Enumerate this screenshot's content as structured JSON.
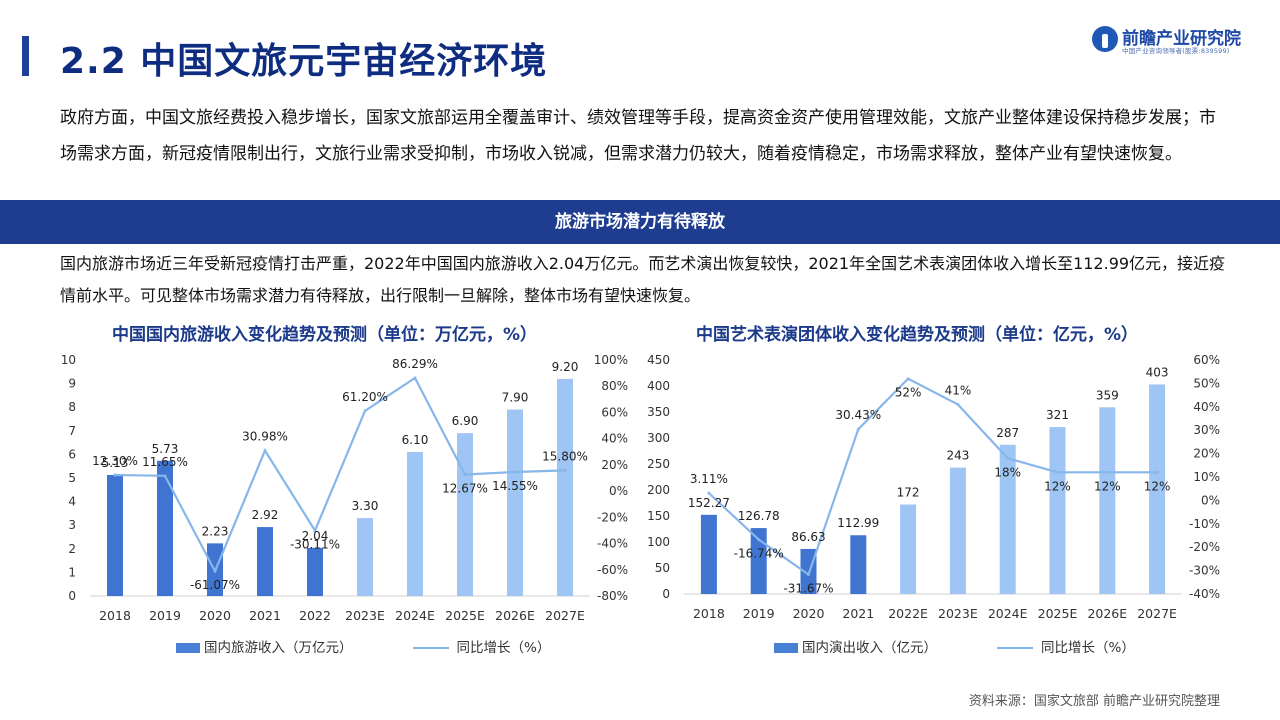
{
  "page": {
    "title": "2.2 中国文旅元宇宙经济环境",
    "logo_name": "前瞻产业研究院",
    "logo_sub": "中国产业咨询领导者(股票:839599)",
    "intro": "政府方面，中国文旅经费投入稳步增长，国家文旅部运用全覆盖审计、绩效管理等手段，提高资金资产使用管理效能，文旅产业整体建设保持稳步发展；市场需求方面，新冠疫情限制出行，文旅行业需求受抑制，市场收入锐减，但需求潜力仍较大，随着疫情稳定，市场需求释放，整体产业有望快速恢复。",
    "banner": "旅游市场潜力有待释放",
    "desc": "国内旅游市场近三年受新冠疫情打击严重，2022年中国国内旅游收入2.04万亿元。而艺术演出恢复较快，2021年全国艺术表演团体收入增长至112.99亿元，接近疫情前水平。可见整体市场需求潜力有待释放，出行限制一旦解除，整体市场有望快速恢复。",
    "source": "资料来源：国家文旅部 前瞻产业研究院整理",
    "colors": {
      "actual": "#3f74d1",
      "forecast": "#9ec5f3",
      "line": "#86b6ea",
      "title": "#1b3a8a"
    }
  },
  "chart_data": [
    {
      "type": "bar",
      "title": "中国国内旅游收入变化趋势及预测（单位：万亿元，%）",
      "categories": [
        "2018",
        "2019",
        "2020",
        "2021",
        "2022",
        "2023E",
        "2024E",
        "2025E",
        "2026E",
        "2027E"
      ],
      "forecast_from_index": 5,
      "series": [
        {
          "name": "国内旅游收入（万亿元）",
          "axis": "left",
          "values": [
            5.13,
            5.73,
            2.23,
            2.92,
            2.04,
            3.3,
            6.1,
            6.9,
            7.9,
            9.2
          ],
          "labels": [
            "5.13",
            "5.73",
            "2.23",
            "2.92",
            "2.04",
            "3.30",
            "6.10",
            "6.90",
            "7.90",
            "9.20"
          ]
        },
        {
          "name": "同比增长（%）",
          "type": "line",
          "axis": "right",
          "values": [
            12.3,
            11.65,
            -61.07,
            30.98,
            -30.11,
            61.2,
            86.29,
            12.67,
            14.55,
            15.8
          ],
          "labels": [
            "12.30%",
            "11.65%",
            "-61.07%",
            "30.98%",
            "-30.11%",
            "61.20%",
            "86.29%",
            "12.67%",
            "14.55%",
            "15.80%"
          ]
        }
      ],
      "y_left": {
        "min": 0,
        "max": 10,
        "ticks": [
          "0",
          "1",
          "2",
          "3",
          "4",
          "5",
          "6",
          "7",
          "8",
          "9",
          "10"
        ]
      },
      "y_right": {
        "min": -80,
        "max": 100,
        "ticks": [
          "-80%",
          "-60%",
          "-40%",
          "-20%",
          "0%",
          "20%",
          "40%",
          "60%",
          "80%",
          "100%"
        ]
      },
      "legend_bar": "国内旅游收入（万亿元）",
      "legend_line": "同比增长（%）"
    },
    {
      "type": "bar",
      "title": "中国艺术表演团体收入变化趋势及预测（单位：亿元，%）",
      "categories": [
        "2018",
        "2019",
        "2020",
        "2021",
        "2022E",
        "2023E",
        "2024E",
        "2025E",
        "2026E",
        "2027E"
      ],
      "forecast_from_index": 4,
      "series": [
        {
          "name": "国内演出收入（亿元）",
          "axis": "left",
          "values": [
            152.27,
            126.78,
            86.63,
            112.99,
            172,
            243,
            287,
            321,
            359,
            403
          ],
          "labels": [
            "152.27",
            "126.78",
            "86.63",
            "112.99",
            "172",
            "243",
            "287",
            "321",
            "359",
            "403"
          ]
        },
        {
          "name": "同比增长（%）",
          "type": "line",
          "axis": "right",
          "values": [
            3.11,
            -16.74,
            -31.67,
            30.43,
            52,
            41,
            18,
            12,
            12,
            12
          ],
          "labels": [
            "3.11%",
            "-16.74%",
            "-31.67%",
            "30.43%",
            "52%",
            "41%",
            "18%",
            "12%",
            "12%",
            "12%"
          ]
        }
      ],
      "y_left": {
        "min": 0,
        "max": 450,
        "ticks": [
          "0",
          "50",
          "100",
          "150",
          "200",
          "250",
          "300",
          "350",
          "400",
          "450"
        ]
      },
      "y_right": {
        "min": -40,
        "max": 60,
        "ticks": [
          "-40%",
          "-30%",
          "-20%",
          "-10%",
          "0%",
          "10%",
          "20%",
          "30%",
          "40%",
          "50%",
          "60%"
        ]
      },
      "legend_bar": "国内演出收入（亿元）",
      "legend_line": "同比增长（%）"
    }
  ]
}
